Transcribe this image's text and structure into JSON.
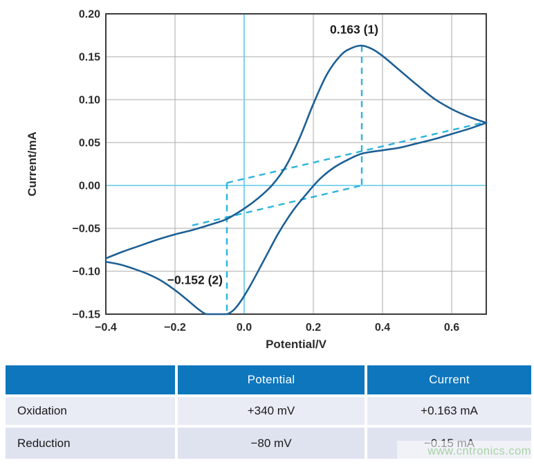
{
  "watermark": "www.cntronics.com",
  "chart_data": {
    "type": "line",
    "title": "",
    "xlabel": "Potential/V",
    "ylabel": "Current/mA",
    "xlim": [
      -0.4,
      0.7
    ],
    "ylim": [
      -0.15,
      0.2
    ],
    "legend": "none",
    "x_ticks": [
      {
        "v": -0.4,
        "label": "−0.4"
      },
      {
        "v": -0.2,
        "label": "−0.2"
      },
      {
        "v": 0.0,
        "label": "0.0"
      },
      {
        "v": 0.2,
        "label": "0.2"
      },
      {
        "v": 0.4,
        "label": "0.4"
      },
      {
        "v": 0.6,
        "label": "0.6"
      }
    ],
    "y_ticks": [
      {
        "v": 0.2,
        "label": "0.20"
      },
      {
        "v": 0.15,
        "label": "0.15"
      },
      {
        "v": 0.1,
        "label": "0.10"
      },
      {
        "v": 0.05,
        "label": "0.05"
      },
      {
        "v": 0.0,
        "label": "0.00"
      },
      {
        "v": -0.05,
        "label": "−0.05"
      },
      {
        "v": -0.1,
        "label": "−0.10"
      },
      {
        "v": -0.15,
        "label": "−0.15"
      }
    ],
    "grid_x": [
      -0.2,
      0.2,
      0.4,
      0.6
    ],
    "grid_y": [
      0.15,
      0.1,
      0.05,
      -0.05,
      -0.1
    ],
    "zero_axis_lines": {
      "x": 0.0,
      "y": 0.0
    },
    "series": [
      {
        "name": "forward-anodic-scan",
        "points": [
          [
            -0.4,
            -0.085
          ],
          [
            -0.35,
            -0.077
          ],
          [
            -0.3,
            -0.07
          ],
          [
            -0.25,
            -0.063
          ],
          [
            -0.2,
            -0.057
          ],
          [
            -0.15,
            -0.052
          ],
          [
            -0.1,
            -0.046
          ],
          [
            -0.05,
            -0.039
          ],
          [
            0.0,
            -0.027
          ],
          [
            0.04,
            -0.015
          ],
          [
            0.08,
            0.0
          ],
          [
            0.12,
            0.022
          ],
          [
            0.16,
            0.055
          ],
          [
            0.2,
            0.095
          ],
          [
            0.24,
            0.13
          ],
          [
            0.28,
            0.152
          ],
          [
            0.31,
            0.16
          ],
          [
            0.34,
            0.163
          ],
          [
            0.37,
            0.159
          ],
          [
            0.4,
            0.151
          ],
          [
            0.45,
            0.134
          ],
          [
            0.5,
            0.117
          ],
          [
            0.55,
            0.101
          ],
          [
            0.6,
            0.089
          ],
          [
            0.65,
            0.08
          ],
          [
            0.7,
            0.073
          ]
        ]
      },
      {
        "name": "reverse-cathodic-scan",
        "points": [
          [
            0.7,
            0.073
          ],
          [
            0.65,
            0.066
          ],
          [
            0.6,
            0.06
          ],
          [
            0.55,
            0.054
          ],
          [
            0.5,
            0.049
          ],
          [
            0.45,
            0.044
          ],
          [
            0.4,
            0.041
          ],
          [
            0.34,
            0.037
          ],
          [
            0.3,
            0.03
          ],
          [
            0.26,
            0.021
          ],
          [
            0.22,
            0.008
          ],
          [
            0.18,
            -0.01
          ],
          [
            0.14,
            -0.03
          ],
          [
            0.1,
            -0.055
          ],
          [
            0.06,
            -0.085
          ],
          [
            0.02,
            -0.115
          ],
          [
            -0.01,
            -0.135
          ],
          [
            -0.03,
            -0.145
          ],
          [
            -0.05,
            -0.15
          ],
          [
            -0.07,
            -0.152
          ],
          [
            -0.09,
            -0.152
          ],
          [
            -0.11,
            -0.15
          ],
          [
            -0.13,
            -0.145
          ],
          [
            -0.16,
            -0.135
          ],
          [
            -0.2,
            -0.122
          ],
          [
            -0.24,
            -0.111
          ],
          [
            -0.28,
            -0.103
          ],
          [
            -0.32,
            -0.097
          ],
          [
            -0.36,
            -0.092
          ],
          [
            -0.4,
            -0.089
          ]
        ]
      }
    ],
    "guides": [
      {
        "name": "oxidation-baseline",
        "points": [
          [
            -0.05,
            0.003
          ],
          [
            0.7,
            0.074
          ]
        ]
      },
      {
        "name": "reduction-baseline",
        "points": [
          [
            -0.15,
            -0.0465
          ],
          [
            0.34,
            0.0
          ]
        ]
      },
      {
        "name": "oxidation-peak-drop",
        "points": [
          [
            0.34,
            0.163
          ],
          [
            0.34,
            0.0
          ]
        ]
      },
      {
        "name": "reduction-peak-drop",
        "points": [
          [
            -0.05,
            0.003
          ],
          [
            -0.05,
            -0.148
          ]
        ]
      }
    ],
    "annotations": [
      {
        "name": "oxidation-peak-label",
        "text": "0.163 (1)",
        "x": 0.318,
        "y": 0.177,
        "anchor": "middle"
      },
      {
        "name": "reduction-peak-label",
        "text": "−0.152 (2)",
        "x": -0.062,
        "y": -0.115,
        "anchor": "end"
      }
    ],
    "colors": {
      "curve": "#1d5f94",
      "dashed": "#2bb3dc",
      "zero_line": "#5fc8e8",
      "grid": "#aaaaaa",
      "border": "#3b3b3b",
      "text": "#2b2b2b",
      "annotation_text": "#1b1b1b"
    }
  },
  "table": {
    "header": [
      "",
      "Potential",
      "Current"
    ],
    "rows": [
      {
        "label": "Oxidation",
        "potential": "+340 mV",
        "current": "+0.163 mA"
      },
      {
        "label": "Reduction",
        "potential": "−80 mV",
        "current": "−0.15 mA"
      }
    ],
    "colors": {
      "header_bg": "#0e76bd",
      "header_text": "#ffffff",
      "row1_bg": "#e9ebf5",
      "row2_bg": "#dfe3f0",
      "text": "#1a1a1a",
      "watermark_text": "#a7d3a4"
    }
  }
}
